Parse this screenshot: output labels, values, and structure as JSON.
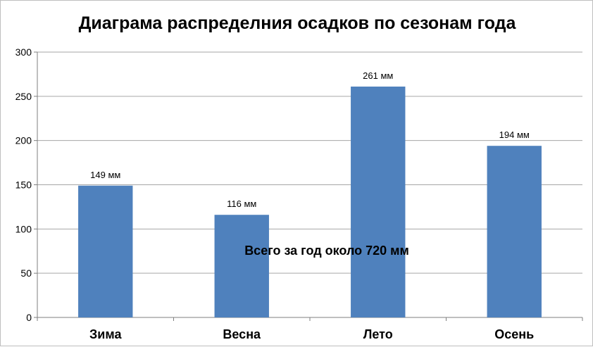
{
  "chart_data": {
    "type": "bar",
    "title": "Диаграма распределния осадков по сезонам года",
    "categories": [
      "Зима",
      "Весна",
      "Лето",
      "Осень"
    ],
    "values": [
      149,
      116,
      261,
      194
    ],
    "data_labels": [
      "149 мм",
      "116 мм",
      "261 мм",
      "194 мм"
    ],
    "yticks": [
      "0",
      "50",
      "100",
      "150",
      "200",
      "250",
      "300"
    ],
    "ylim": [
      0,
      300
    ],
    "grid": true,
    "legend": "none",
    "bar_color": "#4f81bd",
    "annotation": "Всего за год около 720 мм"
  }
}
